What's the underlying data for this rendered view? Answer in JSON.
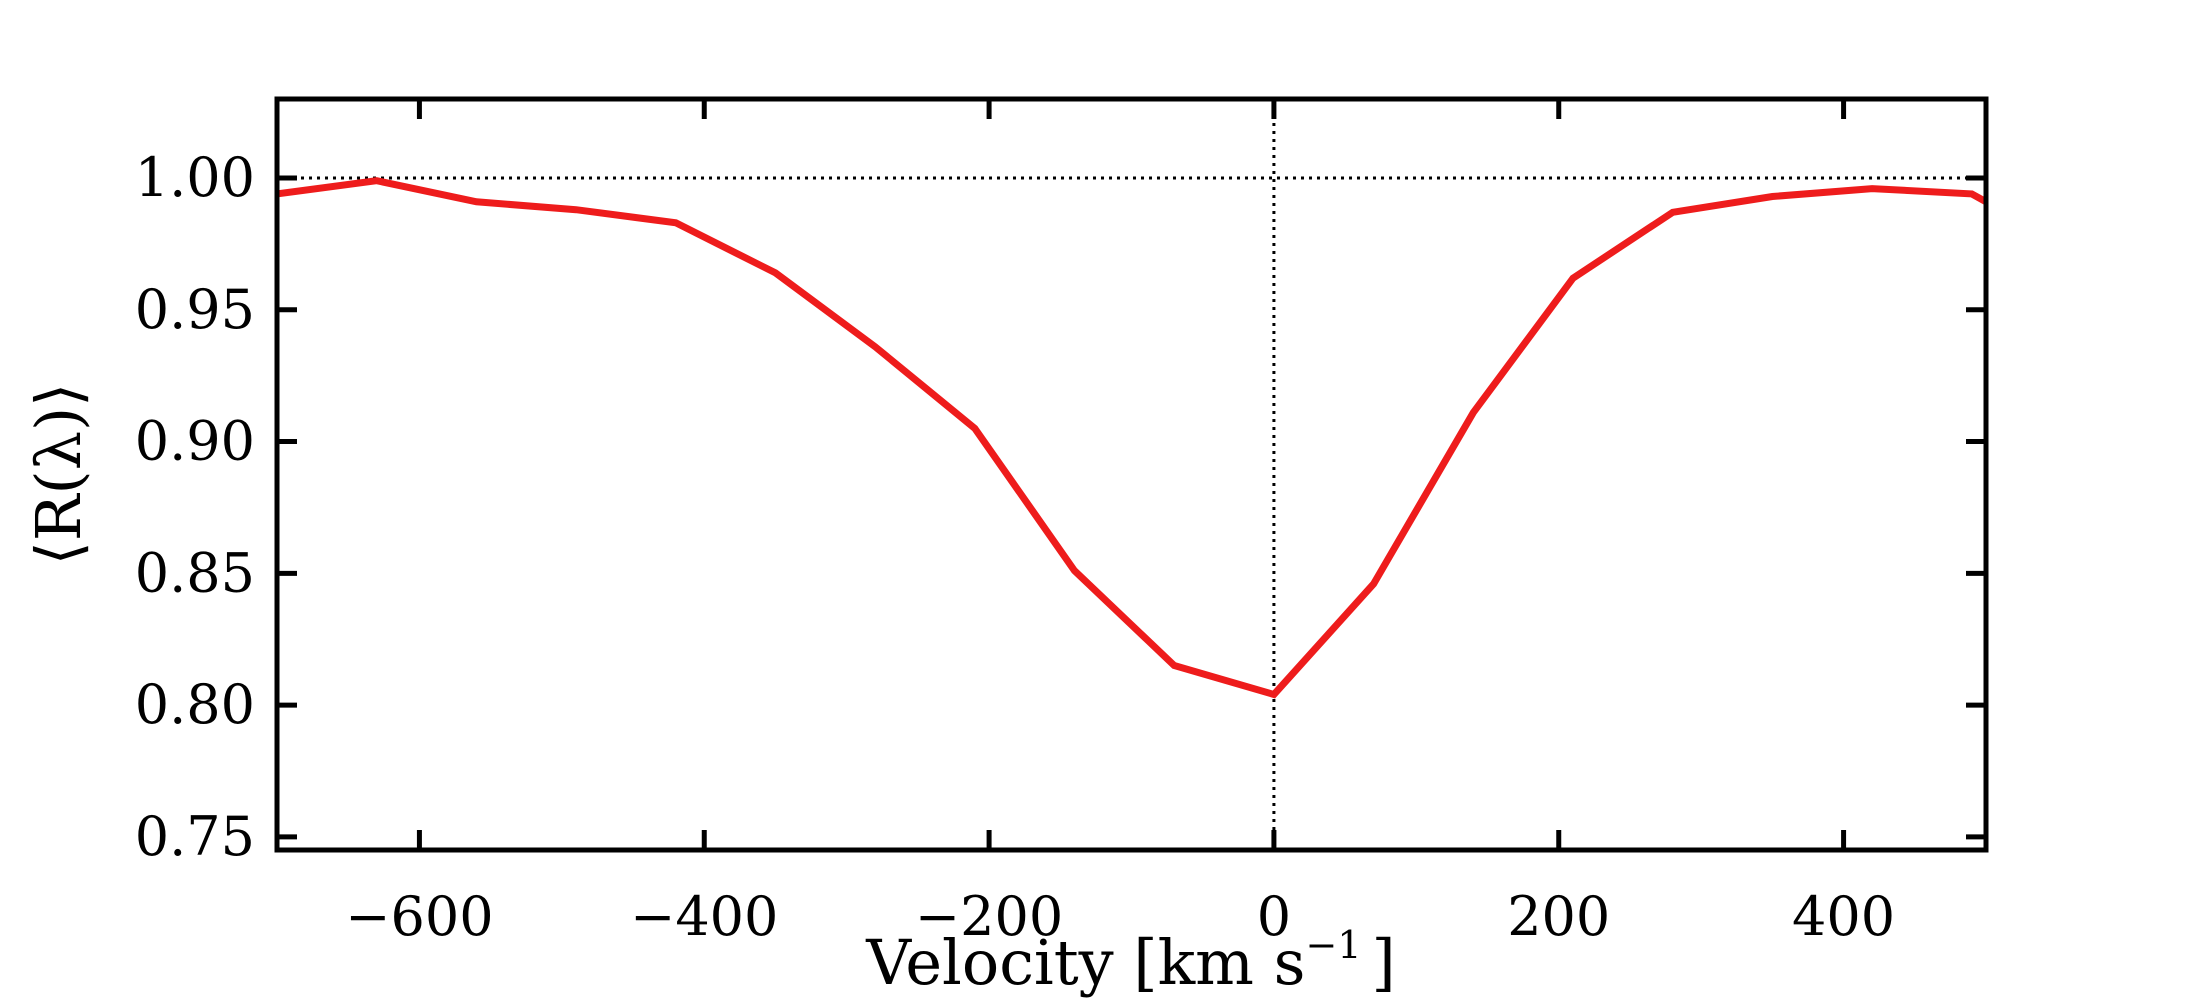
{
  "chart_data": {
    "type": "line",
    "xlabel": "Velocity [km s",
    "xlabel_sup": "−1",
    "xlabel_end": "]",
    "ylabel": "⟨R(λ)⟩",
    "xlim": [
      -700,
      500
    ],
    "ylim": [
      0.745,
      1.03
    ],
    "xticks": [
      -600,
      -400,
      -200,
      0,
      200,
      400
    ],
    "xtick_labels": [
      "−600",
      "−400",
      "−200",
      "0",
      "200",
      "400"
    ],
    "yticks": [
      0.75,
      0.8,
      0.85,
      0.9,
      0.95,
      1.0
    ],
    "ytick_labels": [
      "0.75",
      "0.80",
      "0.85",
      "0.90",
      "0.95",
      "1.00"
    ],
    "reference_lines": {
      "horizontal_y": 1.0,
      "vertical_x": 0,
      "style": "dotted",
      "color": "#000000"
    },
    "series": [
      {
        "color": "#ee1c1c",
        "x": [
          -700,
          -630,
          -560,
          -490,
          -420,
          -350,
          -280,
          -210,
          -140,
          -70,
          0,
          70,
          140,
          210,
          280,
          350,
          420,
          490,
          500
        ],
        "y": [
          0.994,
          0.999,
          0.991,
          0.988,
          0.983,
          0.964,
          0.936,
          0.905,
          0.851,
          0.815,
          0.804,
          0.846,
          0.911,
          0.962,
          0.987,
          0.993,
          0.996,
          0.994,
          0.991
        ]
      }
    ]
  }
}
